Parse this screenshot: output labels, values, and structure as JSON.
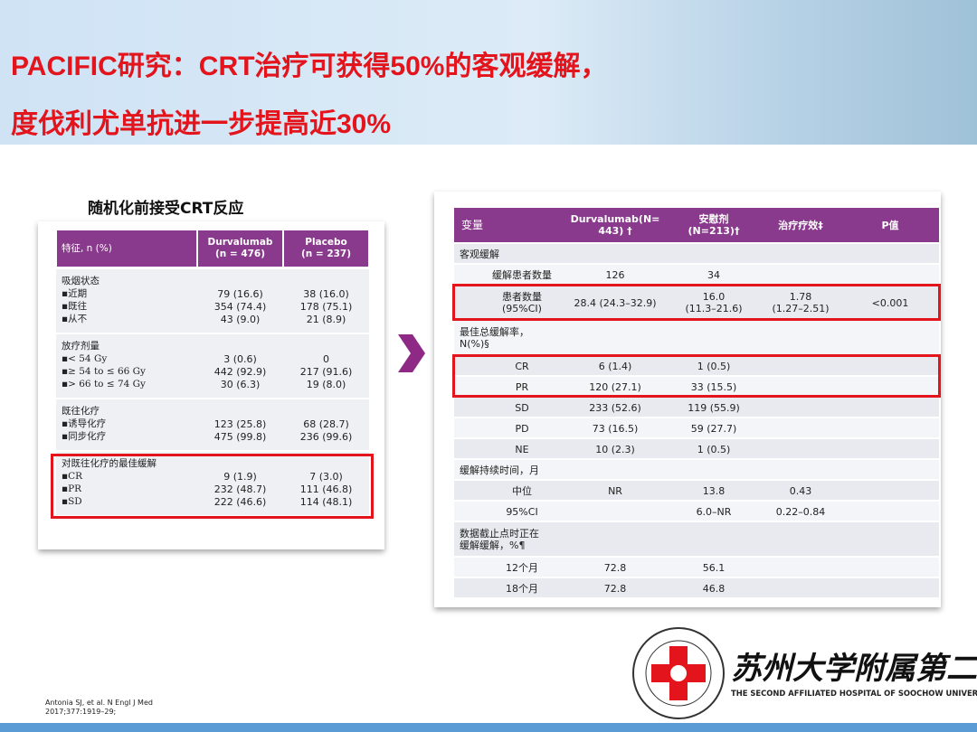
{
  "header": {
    "title": [
      "PACIFIC研究：CRT治疗可获得50%的客观缓解，",
      "度伐利尤单抗进一步提高近30%"
    ]
  },
  "left_table": {
    "caption": "随机化前接受CRT反应",
    "columns": [
      "特征, n (%)",
      "Durvalumab\n(n = 476)",
      "Placebo\n(n = 237)"
    ],
    "groups": [
      {
        "title": "吸烟状态",
        "rows": [
          [
            "▪近期",
            "79 (16.6)",
            "38 (16.0)"
          ],
          [
            "▪既往",
            "354 (74.4)",
            "178 (75.1)"
          ],
          [
            "▪从不",
            "43 (9.0)",
            "21 (8.9)"
          ]
        ]
      },
      {
        "title": "放疗剂量",
        "rows": [
          [
            "▪< 54 Gy",
            "3 (0.6)",
            "0"
          ],
          [
            "▪≥ 54 to ≤ 66 Gy",
            "442 (92.9)",
            "217 (91.6)"
          ],
          [
            "▪> 66 to ≤ 74 Gy",
            "30 (6.3)",
            "19 (8.0)"
          ]
        ]
      },
      {
        "title": "既往化疗",
        "rows": [
          [
            "▪诱导化疗",
            "123 (25.8)",
            "68 (28.7)"
          ],
          [
            "▪同步化疗",
            "475 (99.8)",
            "236 (99.6)"
          ]
        ]
      },
      {
        "title": "对既往化疗的最佳缓解",
        "rows": [
          [
            "▪CR",
            "9 (1.9)",
            "7 (3.0)"
          ],
          [
            "▪PR",
            "232 (48.7)",
            "111 (46.8)"
          ],
          [
            "▪SD",
            "222 (46.6)",
            "114 (48.1)"
          ]
        ]
      }
    ]
  },
  "right_table": {
    "columns": [
      "变量",
      "Durvalumab(N=\n443) †",
      "安慰剂\n(N=213)†",
      "治疗疗效‡",
      "P值"
    ],
    "rows": [
      [
        "客观缓解",
        null,
        null,
        null,
        null
      ],
      [
        "缓解患者数量",
        "126",
        "34",
        null,
        null
      ],
      [
        "患者数量\n(95%CI)",
        "28.4 (24.3–32.9)",
        "16.0\n(11.3–21.6)",
        "1.78\n(1.27–2.51)",
        "<0.001"
      ],
      [
        "最佳总缓解率，\nN(%)§",
        null,
        null,
        null,
        null
      ],
      [
        "CR",
        "6 (1.4)",
        "1 (0.5)",
        null,
        null
      ],
      [
        "PR",
        "120 (27.1)",
        "33 (15.5)",
        null,
        null
      ],
      [
        "SD",
        "233 (52.6)",
        "119 (55.9)",
        null,
        null
      ],
      [
        "PD",
        "73 (16.5)",
        "59 (27.7)",
        null,
        null
      ],
      [
        "NE",
        "10 (2.3)",
        "1 (0.5)",
        null,
        null
      ],
      [
        "缓解持续时间，月",
        null,
        null,
        null,
        null
      ],
      [
        "中位",
        "NR",
        "13.8",
        "0.43",
        null
      ],
      [
        "95%CI",
        null,
        "6.0–NR",
        "0.22–0.84",
        null
      ],
      [
        "数据截止点时正在\n缓解缓解，%¶",
        null,
        null,
        null,
        null
      ],
      [
        "12个月",
        "72.8",
        "56.1",
        null,
        null
      ],
      [
        "18个月",
        "72.8",
        "46.8",
        null,
        null
      ]
    ]
  },
  "footnote": "Antonia SJ, et al. N Engl J Med\n2017;377:1919–29;",
  "logo": {
    "name": "苏州大学附属第二医院",
    "english": "THE SECOND AFFILIATED HOSPITAL OF SOOCHOW UNIVERSITY"
  }
}
